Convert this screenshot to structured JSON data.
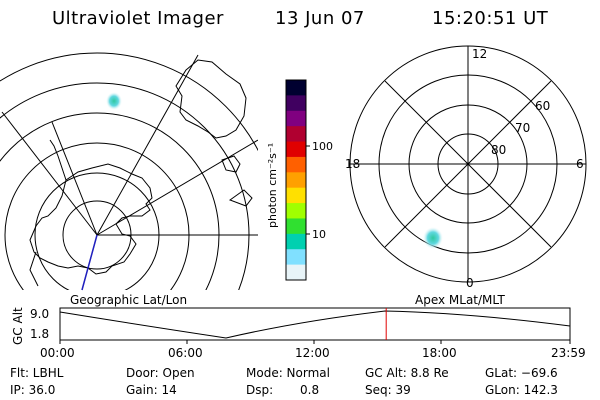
{
  "header": {
    "instrument": "Ultraviolet Imager",
    "date": "13 Jun 07",
    "time": "15:20:51 UT"
  },
  "geo_map": {
    "label": "Geographic Lat/Lon"
  },
  "polar_map": {
    "label": "Apex MLat/MLT",
    "mlt_labels": [
      "12",
      "18",
      "6",
      "0"
    ],
    "mlat_labels": [
      "60",
      "70",
      "80"
    ]
  },
  "colorbar": {
    "unit_label": "photon cm⁻²s⁻¹",
    "ticks": [
      "100",
      "10"
    ],
    "colors": [
      "#000030",
      "#400060",
      "#800080",
      "#b00030",
      "#e00000",
      "#ff6000",
      "#ffa000",
      "#ffe000",
      "#a0ff00",
      "#30e030",
      "#00d0b0",
      "#80e0ff",
      "#e8f4f8"
    ]
  },
  "altitude_plot": {
    "axis_label": "GC Alt",
    "y_ticks": [
      "9.0",
      "1.8"
    ],
    "x_ticks": [
      "00:00",
      "06:00",
      "12:00",
      "18:00",
      "23:59"
    ],
    "cursor_time_hours": 15.35,
    "cursor_color": "#e00000"
  },
  "info": {
    "filter": "Flt: LBHL",
    "ip": "IP: 36.0",
    "door": "Door: Open",
    "gain": "Gain: 14",
    "mode": "Mode: Normal",
    "dsp_label": "Dsp:",
    "dsp_value": "0.8",
    "gc_alt": "GC Alt: 8.8 Re",
    "seq": "Seq: 39",
    "glat": "GLat: −69.6",
    "glon": "GLon: 142.3"
  }
}
